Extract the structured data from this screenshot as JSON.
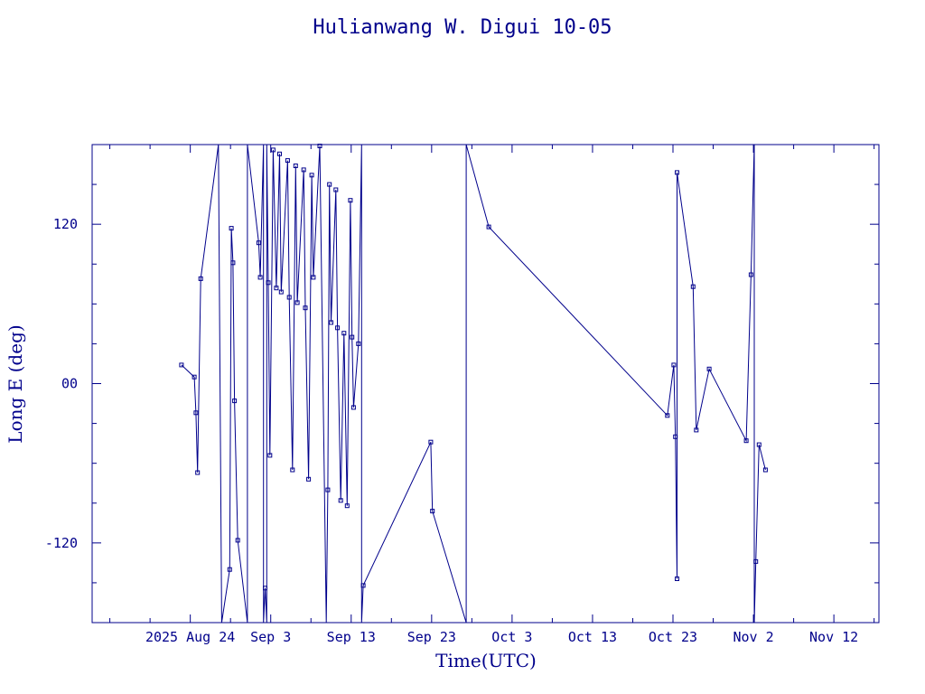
{
  "chart_data": {
    "type": "line",
    "title": "Hulianwang W. Digui 10-05",
    "xlabel": "Time(UTC)",
    "ylabel": "Long E (deg)",
    "x_unit": "day",
    "x_ticks": [
      {
        "x": "2025-08-24",
        "label": "2025 Aug 24"
      },
      {
        "x": "2025-09-03",
        "label": "Sep  3"
      },
      {
        "x": "2025-09-13",
        "label": "Sep 13"
      },
      {
        "x": "2025-09-23",
        "label": "Sep 23"
      },
      {
        "x": "2025-10-03",
        "label": "Oct  3"
      },
      {
        "x": "2025-10-13",
        "label": "Oct 13"
      },
      {
        "x": "2025-10-23",
        "label": "Oct 23"
      },
      {
        "x": "2025-11-02",
        "label": "Nov  2"
      },
      {
        "x": "2025-11-12",
        "label": "Nov 12"
      }
    ],
    "y_ticks": [
      {
        "y": 120,
        "label": "120"
      },
      {
        "y": 0,
        "label": "00"
      },
      {
        "y": -120,
        "label": "-120"
      }
    ],
    "xlim": [
      "2025-08-11 19:12",
      "2025-11-17 14:24"
    ],
    "ylim": [
      -180,
      180
    ],
    "colors": {
      "line": "#00008b",
      "axis": "#00008b",
      "background": "#ffffff"
    },
    "series": [
      {
        "points": [
          {
            "x": "2025-08-22 21:36",
            "y": 14
          },
          {
            "x": "2025-08-24 12:00",
            "y": 5
          },
          {
            "x": "2025-08-24 16:48",
            "y": -22
          },
          {
            "x": "2025-08-24 21:36",
            "y": -67
          },
          {
            "x": "2025-08-25 07:12",
            "y": 79
          },
          {
            "x": "2025-08-27 12:00",
            "y": 180,
            "m": 0
          },
          {
            "x": "2025-08-27 21:36",
            "y": -180,
            "m": 0
          },
          {
            "x": "2025-08-28 21:36",
            "y": -140
          },
          {
            "x": "2025-08-29 02:24",
            "y": 117
          },
          {
            "x": "2025-08-29 07:12",
            "y": 91
          },
          {
            "x": "2025-08-29 12:00",
            "y": -13
          },
          {
            "x": "2025-08-29 21:36",
            "y": -118
          },
          {
            "x": "2025-08-31 02:24",
            "y": -180,
            "m": 0
          },
          {
            "x": "2025-08-31 02:24",
            "y": 180,
            "m": 0
          },
          {
            "x": "2025-09-01 12:00",
            "y": 106
          },
          {
            "x": "2025-09-01 16:48",
            "y": 80
          },
          {
            "x": "2025-09-02 02:24",
            "y": 180,
            "m": 0
          },
          {
            "x": "2025-09-02 02:24",
            "y": -180,
            "m": 0
          },
          {
            "x": "2025-09-02 07:12",
            "y": -154
          },
          {
            "x": "2025-09-02 12:00",
            "y": -180,
            "m": 0
          },
          {
            "x": "2025-09-02 12:00",
            "y": 180,
            "m": 0
          },
          {
            "x": "2025-09-02 16:48",
            "y": 76
          },
          {
            "x": "2025-09-02 21:36",
            "y": -54
          },
          {
            "x": "2025-09-03 07:12",
            "y": 176
          },
          {
            "x": "2025-09-03 16:48",
            "y": 72
          },
          {
            "x": "2025-09-04 02:24",
            "y": 173
          },
          {
            "x": "2025-09-04 07:12",
            "y": 69
          },
          {
            "x": "2025-09-05 02:24",
            "y": 168
          },
          {
            "x": "2025-09-05 07:12",
            "y": 65
          },
          {
            "x": "2025-09-05 16:48",
            "y": -65
          },
          {
            "x": "2025-09-06 02:24",
            "y": 164
          },
          {
            "x": "2025-09-06 07:12",
            "y": 61
          },
          {
            "x": "2025-09-07 02:24",
            "y": 161
          },
          {
            "x": "2025-09-07 07:12",
            "y": 57
          },
          {
            "x": "2025-09-07 16:48",
            "y": -72
          },
          {
            "x": "2025-09-08 02:24",
            "y": 157
          },
          {
            "x": "2025-09-08 07:12",
            "y": 80
          },
          {
            "x": "2025-09-09 02:24",
            "y": 179
          },
          {
            "x": "2025-09-09 21:36",
            "y": -180,
            "m": 0
          },
          {
            "x": "2025-09-10 02:24",
            "y": -80
          },
          {
            "x": "2025-09-10 07:12",
            "y": 150
          },
          {
            "x": "2025-09-10 12:00",
            "y": 46
          },
          {
            "x": "2025-09-11 02:24",
            "y": 146
          },
          {
            "x": "2025-09-11 07:12",
            "y": 42
          },
          {
            "x": "2025-09-11 16:48",
            "y": -88
          },
          {
            "x": "2025-09-12 02:24",
            "y": 38
          },
          {
            "x": "2025-09-12 12:00",
            "y": -92
          },
          {
            "x": "2025-09-12 21:36",
            "y": 138
          },
          {
            "x": "2025-09-13 02:24",
            "y": 35
          },
          {
            "x": "2025-09-13 07:12",
            "y": -18
          },
          {
            "x": "2025-09-13 21:36",
            "y": 30
          },
          {
            "x": "2025-09-14 07:12",
            "y": 180,
            "m": 0
          },
          {
            "x": "2025-09-14 07:12",
            "y": -180,
            "m": 0
          },
          {
            "x": "2025-09-14 12:00",
            "y": -152
          },
          {
            "x": "2025-09-22 21:36",
            "y": -44
          },
          {
            "x": "2025-09-23 02:24",
            "y": -96
          },
          {
            "x": "2025-09-27 07:12",
            "y": -180,
            "m": 0
          },
          {
            "x": "2025-09-27 07:12",
            "y": 180,
            "m": 0
          },
          {
            "x": "2025-09-30 02:24",
            "y": 118
          },
          {
            "x": "2025-10-22 07:12",
            "y": -24
          },
          {
            "x": "2025-10-23 02:24",
            "y": 14
          },
          {
            "x": "2025-10-23 07:12",
            "y": -40
          },
          {
            "x": "2025-10-23 12:00",
            "y": -147
          },
          {
            "x": "2025-10-23 12:00",
            "y": 159
          },
          {
            "x": "2025-10-25 12:00",
            "y": 73
          },
          {
            "x": "2025-10-25 21:36",
            "y": -35
          },
          {
            "x": "2025-10-27 12:00",
            "y": 11
          },
          {
            "x": "2025-11-01 02:24",
            "y": -43
          },
          {
            "x": "2025-11-01 16:48",
            "y": 82
          },
          {
            "x": "2025-11-02 02:24",
            "y": 180,
            "m": 0
          },
          {
            "x": "2025-11-02 02:24",
            "y": -180,
            "m": 0
          },
          {
            "x": "2025-11-02 07:12",
            "y": -134
          },
          {
            "x": "2025-11-02 16:48",
            "y": -46
          },
          {
            "x": "2025-11-03 12:00",
            "y": -65
          }
        ]
      }
    ],
    "legend": "none",
    "grid": false
  }
}
